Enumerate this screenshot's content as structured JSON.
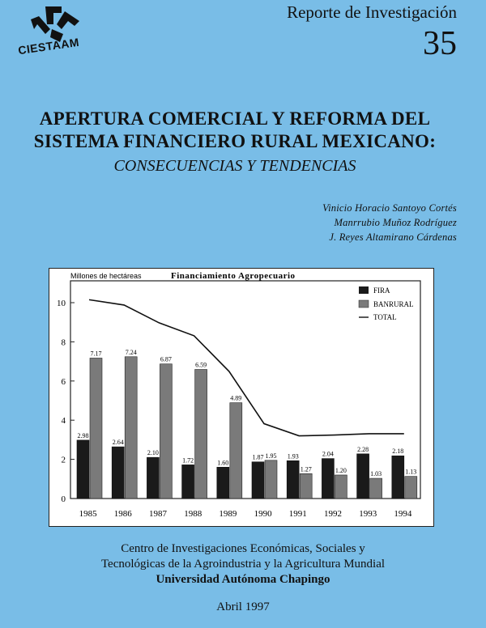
{
  "header": {
    "logo_text": "CIESTAAM",
    "report_label": "Reporte de Investigación",
    "report_number": "35"
  },
  "title": {
    "line1": "APERTURA COMERCIAL Y REFORMA DEL",
    "line2": "SISTEMA FINANCIERO RURAL MEXICANO:",
    "subtitle": "CONSECUENCIAS Y TENDENCIAS"
  },
  "authors": [
    "Vinicio Horacio Santoyo Cortés",
    "Manrrubio Muñoz Rodríguez",
    "J. Reyes Altamirano Cárdenas"
  ],
  "chart_data": {
    "type": "bar",
    "title": "Financiamiento Agropecuario",
    "ylabel": "Millones de hectáreas",
    "xlabel": "",
    "ylim": [
      0,
      10
    ],
    "yticks": [
      0,
      2,
      4,
      6,
      8,
      10
    ],
    "categories": [
      "1985",
      "1986",
      "1987",
      "1988",
      "1989",
      "1990",
      "1991",
      "1992",
      "1993",
      "1994"
    ],
    "series": [
      {
        "name": "FIRA",
        "kind": "bar",
        "color": "#1a1a1a",
        "values": [
          2.98,
          2.64,
          2.1,
          1.72,
          1.6,
          1.87,
          1.93,
          2.04,
          2.28,
          2.18
        ],
        "labels": [
          "2.98",
          "2.64",
          "2.10",
          "1.72",
          "1.60",
          "1.87",
          "1.93",
          "2.04",
          "2.28",
          "2.18"
        ]
      },
      {
        "name": "BANRURAL",
        "kind": "bar",
        "color": "#7a7a7a",
        "values": [
          7.17,
          7.24,
          6.87,
          6.59,
          4.89,
          1.95,
          1.27,
          1.2,
          1.03,
          1.13
        ],
        "labels": [
          "7.17",
          "7.24",
          "6.87",
          "6.59",
          "4.89",
          "1.95",
          "1.27",
          "1.20",
          "1.03",
          "1.13"
        ]
      },
      {
        "name": "TOTAL",
        "kind": "line",
        "color": "#111111",
        "values": [
          10.15,
          9.88,
          8.97,
          8.31,
          6.49,
          3.82,
          3.2,
          3.24,
          3.31,
          3.31
        ]
      }
    ],
    "legend": "top-right",
    "grid": false
  },
  "footer": {
    "line1": "Centro de Investigaciones Económicas, Sociales y",
    "line2": "Tecnológicas de la Agroindustria y la Agricultura Mundial",
    "line3": "Universidad Autónoma Chapingo",
    "date": "Abril 1997"
  }
}
